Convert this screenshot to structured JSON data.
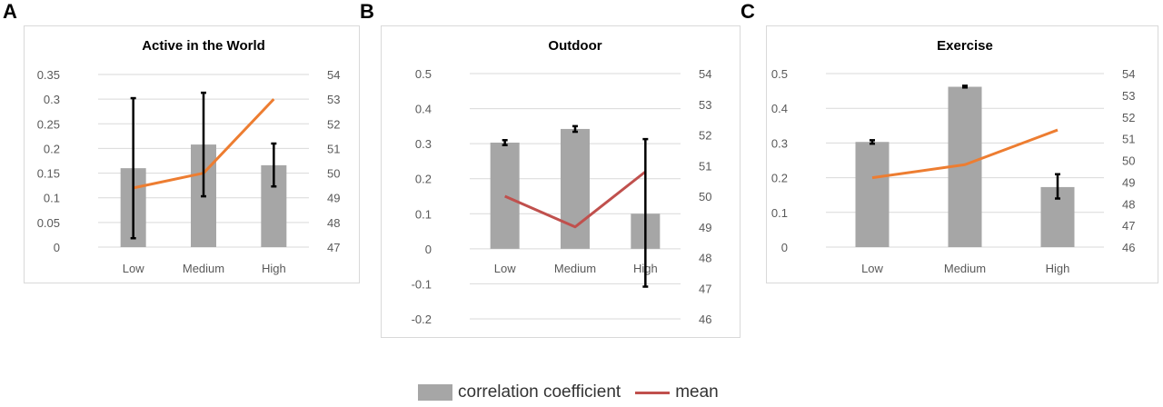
{
  "panels": [
    {
      "letter": "A"
    },
    {
      "letter": "B"
    },
    {
      "letter": "C"
    }
  ],
  "legend": {
    "bar_label": "correlation coefficient",
    "line_label": "mean",
    "bar_color": "#a6a6a6",
    "line_color": "#c0504d"
  },
  "chart_data": [
    {
      "type": "bar",
      "title": "Active in the World",
      "categories": [
        "Low",
        "Medium",
        "High"
      ],
      "bar_color": "#a6a6a6",
      "line_color": "#ed7d31",
      "y_left": {
        "min": 0,
        "max": 0.35,
        "ticks": [
          "0",
          "0.05",
          "0.1",
          "0.15",
          "0.2",
          "0.25",
          "0.3",
          "0.35"
        ]
      },
      "y_right": {
        "min": 47,
        "max": 54,
        "ticks": [
          "47",
          "48",
          "49",
          "50",
          "51",
          "52",
          "53",
          "54"
        ]
      },
      "series": [
        {
          "kind": "bar",
          "axis": "left",
          "values": [
            0.16,
            0.208,
            0.166
          ],
          "error_low": [
            0.018,
            0.103,
            0.123
          ],
          "error_high": [
            0.302,
            0.313,
            0.21
          ]
        },
        {
          "kind": "line",
          "axis": "right",
          "values": [
            49.4,
            50.0,
            53.0
          ]
        }
      ]
    },
    {
      "type": "bar",
      "title": "Outdoor",
      "categories": [
        "Low",
        "Medium",
        "High"
      ],
      "bar_color": "#a6a6a6",
      "line_color": "#c0504d",
      "y_left": {
        "min": -0.2,
        "max": 0.5,
        "ticks": [
          "-0.2",
          "-0.1",
          "0",
          "0.1",
          "0.2",
          "0.3",
          "0.4",
          "0.5"
        ]
      },
      "y_right": {
        "min": 46,
        "max": 54,
        "ticks": [
          "46",
          "47",
          "48",
          "49",
          "50",
          "51",
          "52",
          "53",
          "54"
        ]
      },
      "series": [
        {
          "kind": "bar",
          "axis": "left",
          "values": [
            0.303,
            0.342,
            0.1
          ],
          "error_low": [
            0.296,
            0.334,
            -0.108
          ],
          "error_high": [
            0.31,
            0.35,
            0.313
          ]
        },
        {
          "kind": "line",
          "axis": "right",
          "values": [
            50.0,
            49.0,
            50.8
          ]
        }
      ]
    },
    {
      "type": "bar",
      "title": "Exercise",
      "categories": [
        "Low",
        "Medium",
        "High"
      ],
      "bar_color": "#a6a6a6",
      "line_color": "#ed7d31",
      "y_left": {
        "min": 0,
        "max": 0.5,
        "ticks": [
          "0",
          "0.1",
          "0.2",
          "0.3",
          "0.4",
          "0.5"
        ]
      },
      "y_right": {
        "min": 46,
        "max": 54,
        "ticks": [
          "46",
          "47",
          "48",
          "49",
          "50",
          "51",
          "52",
          "53",
          "54"
        ]
      },
      "series": [
        {
          "kind": "bar",
          "axis": "left",
          "values": [
            0.303,
            0.462,
            0.173
          ],
          "error_low": [
            0.298,
            0.46,
            0.14
          ],
          "error_high": [
            0.308,
            0.465,
            0.21
          ]
        },
        {
          "kind": "line",
          "axis": "right",
          "values": [
            49.2,
            49.8,
            51.4
          ]
        }
      ]
    }
  ]
}
